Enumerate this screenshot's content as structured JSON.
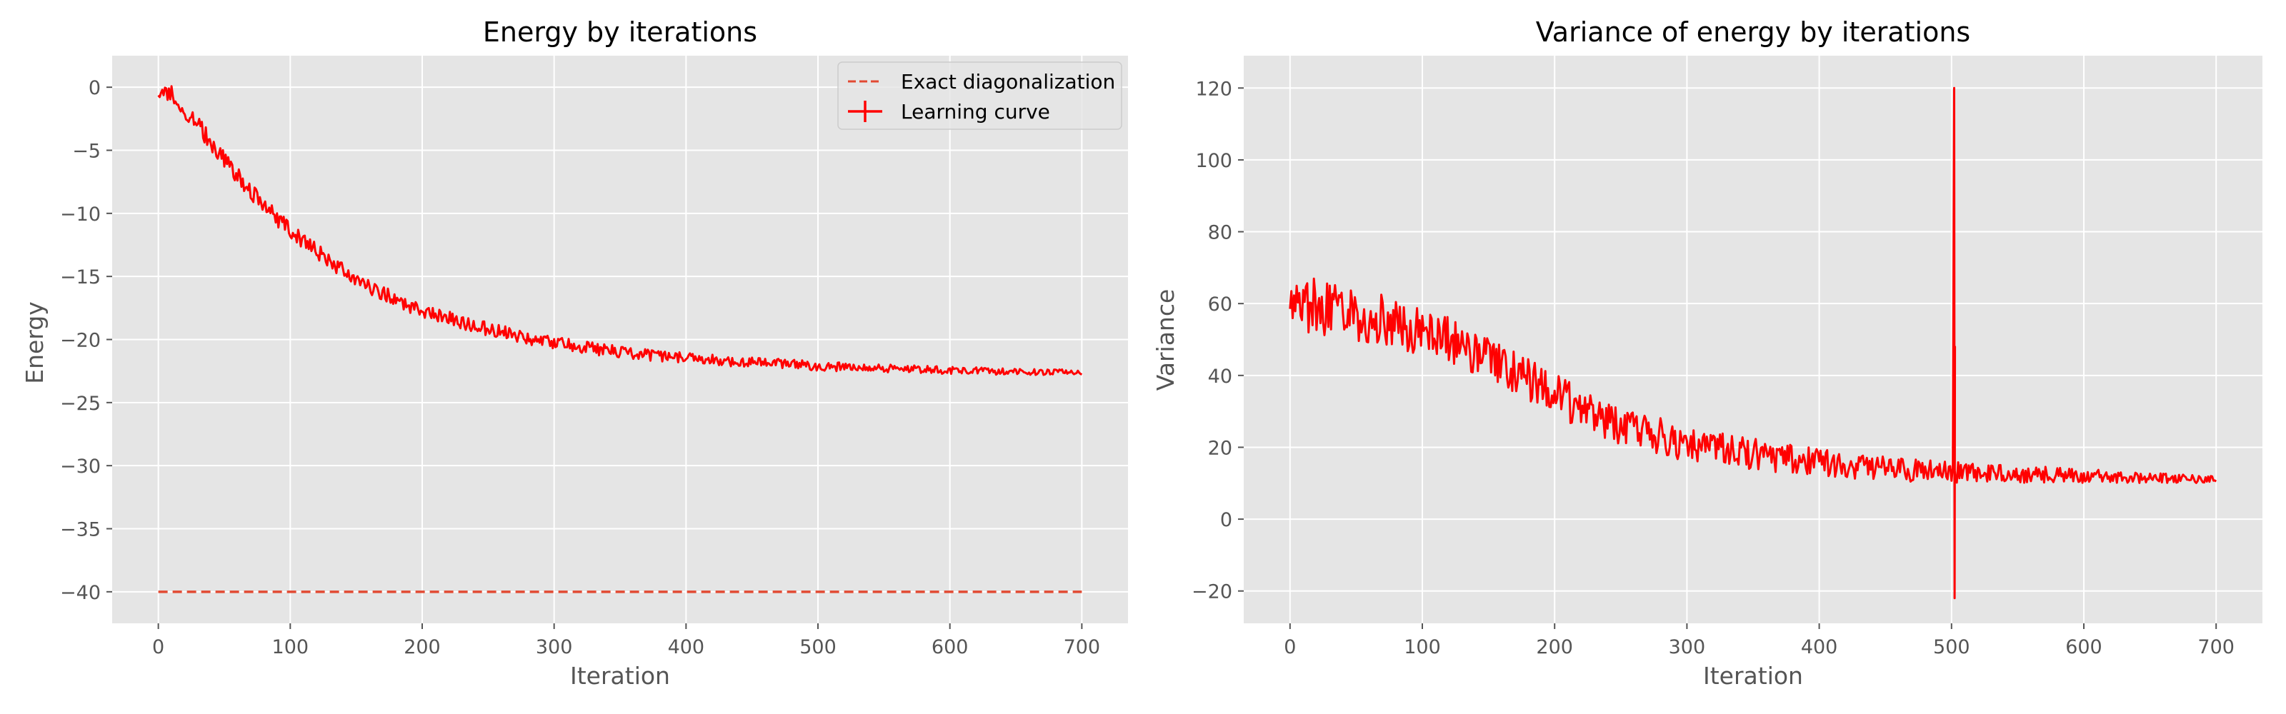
{
  "chart_data": [
    {
      "type": "line",
      "title": "Energy by iterations",
      "xlabel": "Iteration",
      "ylabel": "Energy",
      "xlim": [
        -35,
        735
      ],
      "ylim": [
        -42.5,
        2.5
      ],
      "xticks": [
        0,
        100,
        200,
        300,
        400,
        500,
        600,
        700
      ],
      "xtick_labels": [
        "0",
        "100",
        "200",
        "300",
        "400",
        "500",
        "600",
        "700"
      ],
      "yticks": [
        0,
        -5,
        -10,
        -15,
        -20,
        -25,
        -30,
        -35,
        -40
      ],
      "ytick_labels": [
        "0",
        "−5",
        "−10",
        "−15",
        "−20",
        "−25",
        "−30",
        "−35",
        "−40"
      ],
      "grid": true,
      "legend": "top-right",
      "series": [
        {
          "name": "Exact diagonalization",
          "style": "dashed",
          "color": "#e24a33",
          "x": [
            0,
            700
          ],
          "y": [
            -40,
            -40
          ]
        },
        {
          "name": "Learning curve",
          "style": "solid",
          "color": "#ff0000",
          "x": [
            0,
            10,
            25,
            50,
            75,
            100,
            125,
            150,
            175,
            200,
            250,
            300,
            350,
            400,
            450,
            500,
            550,
            600,
            650,
            700
          ],
          "y": [
            0,
            -0.6,
            -2.3,
            -5.8,
            -8.8,
            -11.4,
            -13.4,
            -15.3,
            -16.6,
            -17.7,
            -19.2,
            -20.3,
            -21.0,
            -21.5,
            -21.8,
            -22.1,
            -22.3,
            -22.45,
            -22.55,
            -22.6
          ],
          "noise_start": 0.45,
          "noise_end": 0.14
        }
      ]
    },
    {
      "type": "line",
      "title": "Variance of energy by iterations",
      "xlabel": "Iteration",
      "ylabel": "Variance",
      "xlim": [
        -35,
        735
      ],
      "ylim": [
        -29,
        129
      ],
      "xticks": [
        0,
        100,
        200,
        300,
        400,
        500,
        600,
        700
      ],
      "xtick_labels": [
        "0",
        "100",
        "200",
        "300",
        "400",
        "500",
        "600",
        "700"
      ],
      "yticks": [
        120,
        100,
        80,
        60,
        40,
        20,
        0,
        -20
      ],
      "ytick_labels": [
        "120",
        "100",
        "80",
        "60",
        "40",
        "20",
        "0",
        "−20"
      ],
      "grid": true,
      "series": [
        {
          "style": "solid",
          "color": "#ff0000",
          "x": [
            0,
            25,
            50,
            75,
            100,
            125,
            150,
            175,
            200,
            225,
            250,
            300,
            350,
            400,
            450,
            500,
            550,
            600,
            650,
            700
          ],
          "y": [
            60,
            59,
            57,
            55,
            52,
            49,
            45,
            40,
            35,
            30,
            26,
            21,
            18,
            15.5,
            14,
            13,
            12.5,
            12,
            11.5,
            11
          ],
          "noise_start": 5.0,
          "noise_end": 0.6,
          "spike": {
            "x": 502,
            "max": 120,
            "min": -22,
            "after": 48
          }
        }
      ]
    }
  ]
}
